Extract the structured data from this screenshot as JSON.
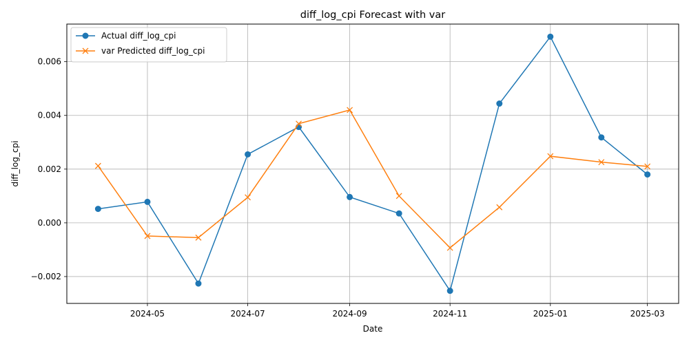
{
  "chart_data": {
    "type": "line",
    "title": "diff_log_cpi Forecast with var",
    "xlabel": "Date",
    "ylabel": "diff_log_cpi",
    "x": [
      "2024-04-01",
      "2024-05-01",
      "2024-06-01",
      "2024-07-01",
      "2024-08-01",
      "2024-09-01",
      "2024-10-01",
      "2024-11-01",
      "2024-12-01",
      "2025-01-01",
      "2025-02-01",
      "2025-03-01"
    ],
    "series": [
      {
        "name": "Actual diff_log_cpi",
        "color": "#1f77b4",
        "marker": "circle",
        "values": [
          0.00052,
          0.00078,
          -0.00226,
          0.00255,
          0.00357,
          0.00096,
          0.00035,
          -0.00253,
          0.00444,
          0.00693,
          0.00318,
          0.0018
        ]
      },
      {
        "name": "var Predicted diff_log_cpi",
        "color": "#ff7f0e",
        "marker": "x",
        "values": [
          0.00212,
          -0.00049,
          -0.00055,
          0.00095,
          0.00369,
          0.0042,
          0.001,
          -0.00093,
          0.00058,
          0.00248,
          0.00226,
          0.0021
        ]
      }
    ],
    "x_ticks": [
      {
        "date": "2024-05-01",
        "label": "2024-05"
      },
      {
        "date": "2024-07-01",
        "label": "2024-07"
      },
      {
        "date": "2024-09-01",
        "label": "2024-09"
      },
      {
        "date": "2024-11-01",
        "label": "2024-11"
      },
      {
        "date": "2025-01-01",
        "label": "2025-01"
      },
      {
        "date": "2025-03-01",
        "label": "2025-03"
      }
    ],
    "y_ticks": [
      {
        "value": -0.002,
        "label": "−0.002"
      },
      {
        "value": 0.0,
        "label": "0.000"
      },
      {
        "value": 0.002,
        "label": "0.002"
      },
      {
        "value": 0.004,
        "label": "0.004"
      },
      {
        "value": 0.006,
        "label": "0.006"
      }
    ],
    "xlim": [
      "2024-03-13",
      "2025-03-20"
    ],
    "ylim": [
      -0.003,
      0.0074
    ],
    "grid": true,
    "legend_position": "upper-left"
  }
}
